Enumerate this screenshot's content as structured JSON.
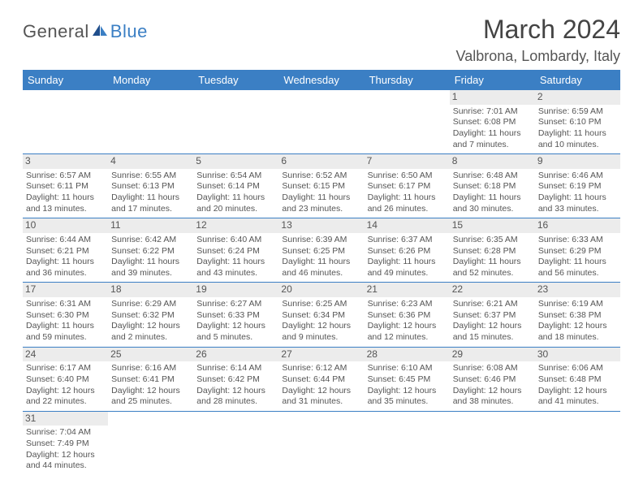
{
  "logo": {
    "text1": "General",
    "text2": "Blue"
  },
  "title": "March 2024",
  "location": "Valbrona, Lombardy, Italy",
  "header_bg": "#3b7fc4",
  "day_headers": [
    "Sunday",
    "Monday",
    "Tuesday",
    "Wednesday",
    "Thursday",
    "Friday",
    "Saturday"
  ],
  "weeks": [
    [
      null,
      null,
      null,
      null,
      null,
      {
        "n": "1",
        "sr": "Sunrise: 7:01 AM",
        "ss": "Sunset: 6:08 PM",
        "dl1": "Daylight: 11 hours",
        "dl2": "and 7 minutes."
      },
      {
        "n": "2",
        "sr": "Sunrise: 6:59 AM",
        "ss": "Sunset: 6:10 PM",
        "dl1": "Daylight: 11 hours",
        "dl2": "and 10 minutes."
      }
    ],
    [
      {
        "n": "3",
        "sr": "Sunrise: 6:57 AM",
        "ss": "Sunset: 6:11 PM",
        "dl1": "Daylight: 11 hours",
        "dl2": "and 13 minutes."
      },
      {
        "n": "4",
        "sr": "Sunrise: 6:55 AM",
        "ss": "Sunset: 6:13 PM",
        "dl1": "Daylight: 11 hours",
        "dl2": "and 17 minutes."
      },
      {
        "n": "5",
        "sr": "Sunrise: 6:54 AM",
        "ss": "Sunset: 6:14 PM",
        "dl1": "Daylight: 11 hours",
        "dl2": "and 20 minutes."
      },
      {
        "n": "6",
        "sr": "Sunrise: 6:52 AM",
        "ss": "Sunset: 6:15 PM",
        "dl1": "Daylight: 11 hours",
        "dl2": "and 23 minutes."
      },
      {
        "n": "7",
        "sr": "Sunrise: 6:50 AM",
        "ss": "Sunset: 6:17 PM",
        "dl1": "Daylight: 11 hours",
        "dl2": "and 26 minutes."
      },
      {
        "n": "8",
        "sr": "Sunrise: 6:48 AM",
        "ss": "Sunset: 6:18 PM",
        "dl1": "Daylight: 11 hours",
        "dl2": "and 30 minutes."
      },
      {
        "n": "9",
        "sr": "Sunrise: 6:46 AM",
        "ss": "Sunset: 6:19 PM",
        "dl1": "Daylight: 11 hours",
        "dl2": "and 33 minutes."
      }
    ],
    [
      {
        "n": "10",
        "sr": "Sunrise: 6:44 AM",
        "ss": "Sunset: 6:21 PM",
        "dl1": "Daylight: 11 hours",
        "dl2": "and 36 minutes."
      },
      {
        "n": "11",
        "sr": "Sunrise: 6:42 AM",
        "ss": "Sunset: 6:22 PM",
        "dl1": "Daylight: 11 hours",
        "dl2": "and 39 minutes."
      },
      {
        "n": "12",
        "sr": "Sunrise: 6:40 AM",
        "ss": "Sunset: 6:24 PM",
        "dl1": "Daylight: 11 hours",
        "dl2": "and 43 minutes."
      },
      {
        "n": "13",
        "sr": "Sunrise: 6:39 AM",
        "ss": "Sunset: 6:25 PM",
        "dl1": "Daylight: 11 hours",
        "dl2": "and 46 minutes."
      },
      {
        "n": "14",
        "sr": "Sunrise: 6:37 AM",
        "ss": "Sunset: 6:26 PM",
        "dl1": "Daylight: 11 hours",
        "dl2": "and 49 minutes."
      },
      {
        "n": "15",
        "sr": "Sunrise: 6:35 AM",
        "ss": "Sunset: 6:28 PM",
        "dl1": "Daylight: 11 hours",
        "dl2": "and 52 minutes."
      },
      {
        "n": "16",
        "sr": "Sunrise: 6:33 AM",
        "ss": "Sunset: 6:29 PM",
        "dl1": "Daylight: 11 hours",
        "dl2": "and 56 minutes."
      }
    ],
    [
      {
        "n": "17",
        "sr": "Sunrise: 6:31 AM",
        "ss": "Sunset: 6:30 PM",
        "dl1": "Daylight: 11 hours",
        "dl2": "and 59 minutes."
      },
      {
        "n": "18",
        "sr": "Sunrise: 6:29 AM",
        "ss": "Sunset: 6:32 PM",
        "dl1": "Daylight: 12 hours",
        "dl2": "and 2 minutes."
      },
      {
        "n": "19",
        "sr": "Sunrise: 6:27 AM",
        "ss": "Sunset: 6:33 PM",
        "dl1": "Daylight: 12 hours",
        "dl2": "and 5 minutes."
      },
      {
        "n": "20",
        "sr": "Sunrise: 6:25 AM",
        "ss": "Sunset: 6:34 PM",
        "dl1": "Daylight: 12 hours",
        "dl2": "and 9 minutes."
      },
      {
        "n": "21",
        "sr": "Sunrise: 6:23 AM",
        "ss": "Sunset: 6:36 PM",
        "dl1": "Daylight: 12 hours",
        "dl2": "and 12 minutes."
      },
      {
        "n": "22",
        "sr": "Sunrise: 6:21 AM",
        "ss": "Sunset: 6:37 PM",
        "dl1": "Daylight: 12 hours",
        "dl2": "and 15 minutes."
      },
      {
        "n": "23",
        "sr": "Sunrise: 6:19 AM",
        "ss": "Sunset: 6:38 PM",
        "dl1": "Daylight: 12 hours",
        "dl2": "and 18 minutes."
      }
    ],
    [
      {
        "n": "24",
        "sr": "Sunrise: 6:17 AM",
        "ss": "Sunset: 6:40 PM",
        "dl1": "Daylight: 12 hours",
        "dl2": "and 22 minutes."
      },
      {
        "n": "25",
        "sr": "Sunrise: 6:16 AM",
        "ss": "Sunset: 6:41 PM",
        "dl1": "Daylight: 12 hours",
        "dl2": "and 25 minutes."
      },
      {
        "n": "26",
        "sr": "Sunrise: 6:14 AM",
        "ss": "Sunset: 6:42 PM",
        "dl1": "Daylight: 12 hours",
        "dl2": "and 28 minutes."
      },
      {
        "n": "27",
        "sr": "Sunrise: 6:12 AM",
        "ss": "Sunset: 6:44 PM",
        "dl1": "Daylight: 12 hours",
        "dl2": "and 31 minutes."
      },
      {
        "n": "28",
        "sr": "Sunrise: 6:10 AM",
        "ss": "Sunset: 6:45 PM",
        "dl1": "Daylight: 12 hours",
        "dl2": "and 35 minutes."
      },
      {
        "n": "29",
        "sr": "Sunrise: 6:08 AM",
        "ss": "Sunset: 6:46 PM",
        "dl1": "Daylight: 12 hours",
        "dl2": "and 38 minutes."
      },
      {
        "n": "30",
        "sr": "Sunrise: 6:06 AM",
        "ss": "Sunset: 6:48 PM",
        "dl1": "Daylight: 12 hours",
        "dl2": "and 41 minutes."
      }
    ],
    [
      {
        "n": "31",
        "sr": "Sunrise: 7:04 AM",
        "ss": "Sunset: 7:49 PM",
        "dl1": "Daylight: 12 hours",
        "dl2": "and 44 minutes."
      },
      null,
      null,
      null,
      null,
      null,
      null
    ]
  ]
}
